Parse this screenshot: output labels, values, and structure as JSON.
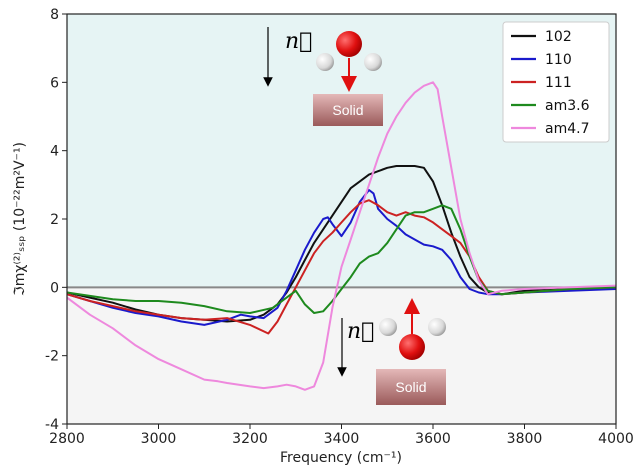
{
  "chart_data": {
    "type": "line",
    "xlabel": "Frequency (cm⁻¹)",
    "ylabel": "ℑmχ⁽²⁾ₛₛₚ (10⁻²²m²V⁻¹)",
    "xlim": [
      2800,
      4000
    ],
    "ylim": [
      -4,
      8
    ],
    "xticks": [
      2800,
      3000,
      3200,
      3400,
      3600,
      3800,
      4000
    ],
    "yticks": [
      -4,
      -2,
      0,
      2,
      4,
      6,
      8
    ],
    "grid": false,
    "legend_position": "top-right",
    "zero_line": 0,
    "colors": {
      "top_background": "#e6f4f4",
      "bottom_background": "#f5f5f5",
      "zero_line": "#888888"
    },
    "series": [
      {
        "name": "102",
        "color": "#111111",
        "x": [
          2800,
          2850,
          2900,
          2950,
          3000,
          3050,
          3100,
          3150,
          3200,
          3230,
          3260,
          3280,
          3300,
          3320,
          3340,
          3360,
          3380,
          3400,
          3420,
          3440,
          3460,
          3480,
          3500,
          3520,
          3540,
          3560,
          3580,
          3600,
          3620,
          3640,
          3660,
          3680,
          3700,
          3720,
          3750,
          3800,
          3900,
          4000
        ],
        "y": [
          -0.15,
          -0.3,
          -0.45,
          -0.65,
          -0.8,
          -0.9,
          -0.95,
          -1.0,
          -0.95,
          -0.8,
          -0.5,
          -0.15,
          0.3,
          0.8,
          1.3,
          1.7,
          2.1,
          2.5,
          2.9,
          3.1,
          3.3,
          3.4,
          3.5,
          3.55,
          3.55,
          3.55,
          3.5,
          3.1,
          2.4,
          1.6,
          0.9,
          0.3,
          0.0,
          -0.15,
          -0.2,
          -0.1,
          -0.05,
          0.0
        ]
      },
      {
        "name": "110",
        "color": "#1a1acc",
        "x": [
          2800,
          2850,
          2900,
          2950,
          3000,
          3050,
          3100,
          3150,
          3180,
          3200,
          3230,
          3260,
          3280,
          3300,
          3320,
          3340,
          3360,
          3370,
          3380,
          3400,
          3420,
          3440,
          3460,
          3470,
          3480,
          3500,
          3520,
          3540,
          3560,
          3580,
          3600,
          3620,
          3640,
          3660,
          3680,
          3700,
          3720,
          3750,
          3800,
          3900,
          4000
        ],
        "y": [
          -0.2,
          -0.4,
          -0.6,
          -0.75,
          -0.85,
          -1.0,
          -1.1,
          -0.95,
          -0.8,
          -0.85,
          -0.9,
          -0.6,
          -0.1,
          0.5,
          1.1,
          1.6,
          2.0,
          2.05,
          1.85,
          1.5,
          1.9,
          2.5,
          2.85,
          2.75,
          2.3,
          2.0,
          1.8,
          1.55,
          1.4,
          1.25,
          1.2,
          1.1,
          0.8,
          0.3,
          -0.05,
          -0.15,
          -0.2,
          -0.2,
          -0.15,
          -0.1,
          -0.05
        ]
      },
      {
        "name": "111",
        "color": "#cc2222",
        "x": [
          2800,
          2850,
          2900,
          2950,
          3000,
          3050,
          3100,
          3150,
          3200,
          3240,
          3260,
          3280,
          3300,
          3320,
          3340,
          3360,
          3380,
          3400,
          3420,
          3440,
          3460,
          3480,
          3500,
          3520,
          3540,
          3560,
          3580,
          3600,
          3620,
          3640,
          3660,
          3680,
          3700,
          3720,
          3750,
          3800,
          3900,
          4000
        ],
        "y": [
          -0.2,
          -0.4,
          -0.55,
          -0.7,
          -0.8,
          -0.9,
          -0.95,
          -0.9,
          -1.1,
          -1.35,
          -1.0,
          -0.5,
          0.0,
          0.5,
          1.0,
          1.35,
          1.6,
          1.9,
          2.2,
          2.45,
          2.55,
          2.4,
          2.2,
          2.1,
          2.2,
          2.1,
          2.05,
          1.9,
          1.7,
          1.5,
          1.3,
          0.9,
          0.3,
          -0.1,
          -0.2,
          -0.15,
          -0.05,
          0.0
        ]
      },
      {
        "name": "am3.6",
        "color": "#1e8a1e",
        "x": [
          2800,
          2850,
          2900,
          2950,
          3000,
          3050,
          3100,
          3150,
          3200,
          3250,
          3280,
          3300,
          3320,
          3340,
          3360,
          3380,
          3400,
          3420,
          3440,
          3460,
          3480,
          3500,
          3520,
          3540,
          3560,
          3580,
          3600,
          3620,
          3640,
          3660,
          3680,
          3700,
          3720,
          3750,
          3800,
          3900,
          4000
        ],
        "y": [
          -0.15,
          -0.25,
          -0.35,
          -0.4,
          -0.4,
          -0.45,
          -0.55,
          -0.7,
          -0.75,
          -0.6,
          -0.3,
          -0.1,
          -0.5,
          -0.75,
          -0.7,
          -0.4,
          -0.05,
          0.3,
          0.7,
          0.9,
          1.0,
          1.3,
          1.7,
          2.1,
          2.2,
          2.2,
          2.3,
          2.4,
          2.3,
          1.7,
          0.9,
          0.2,
          -0.1,
          -0.2,
          -0.15,
          -0.05,
          0.0
        ]
      },
      {
        "name": "am4.7",
        "color": "#ee88dd",
        "x": [
          2800,
          2850,
          2900,
          2950,
          3000,
          3050,
          3100,
          3130,
          3150,
          3200,
          3230,
          3260,
          3280,
          3300,
          3320,
          3330,
          3340,
          3360,
          3380,
          3400,
          3420,
          3440,
          3460,
          3480,
          3500,
          3520,
          3540,
          3560,
          3580,
          3600,
          3610,
          3620,
          3640,
          3660,
          3680,
          3700,
          3720,
          3750,
          3800,
          3900,
          4000
        ],
        "y": [
          -0.3,
          -0.8,
          -1.2,
          -1.7,
          -2.1,
          -2.4,
          -2.7,
          -2.75,
          -2.8,
          -2.9,
          -2.95,
          -2.9,
          -2.85,
          -2.9,
          -3.0,
          -2.95,
          -2.9,
          -2.2,
          -0.6,
          0.6,
          1.4,
          2.2,
          3.0,
          3.8,
          4.5,
          5.0,
          5.4,
          5.7,
          5.9,
          6.0,
          5.8,
          5.0,
          3.5,
          2.0,
          1.0,
          0.2,
          -0.2,
          -0.1,
          -0.05,
          0.0,
          0.05
        ]
      }
    ],
    "annotations": [
      {
        "symbol": "n⃗",
        "label": "Solid",
        "direction": "down",
        "placement": "top"
      },
      {
        "symbol": "n⃗",
        "label": "Solid",
        "direction": "up",
        "placement": "bottom"
      }
    ]
  }
}
